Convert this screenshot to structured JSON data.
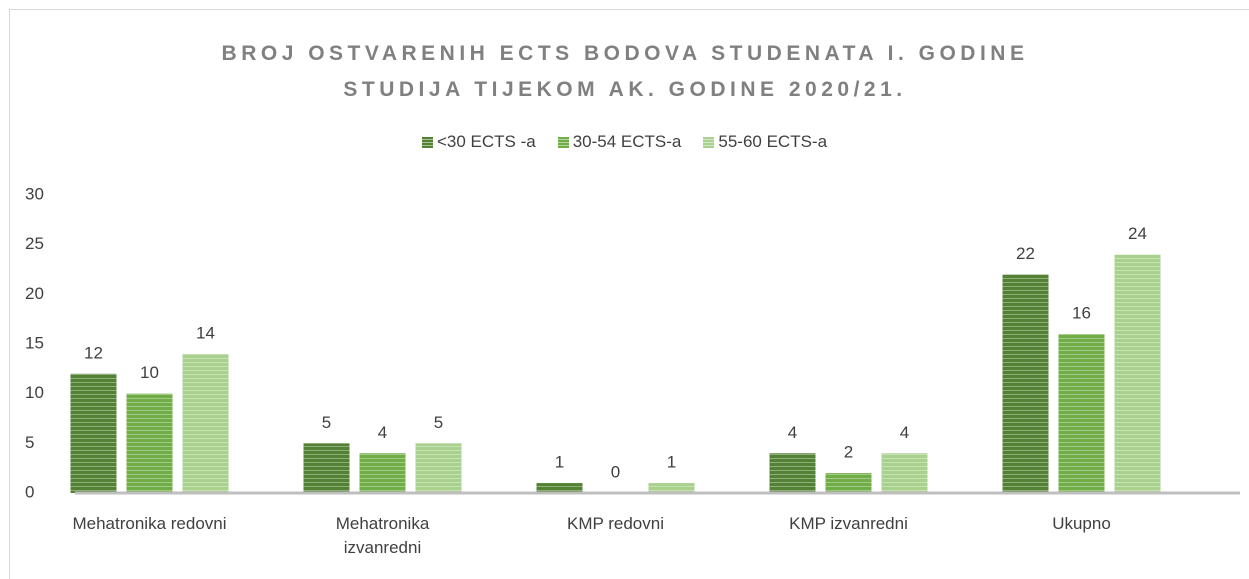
{
  "chart_data": {
    "type": "bar",
    "title": "BROJ OSTVARENIH ECTS BODOVA STUDENATA I. GODINE STUDIJA TIJEKOM AK. GODINE 2020/21.",
    "categories": [
      "Mehatronika redovni",
      "Mehatronika izvanredni",
      "KMP redovni",
      "KMP izvanredni",
      "Ukupno"
    ],
    "series": [
      {
        "name": "<30 ECTS -a",
        "color": "#548235",
        "values": [
          12,
          5,
          1,
          4,
          22
        ]
      },
      {
        "name": "30-54 ECTS-a",
        "color": "#70ad47",
        "values": [
          10,
          4,
          0,
          2,
          16
        ]
      },
      {
        "name": "55-60 ECTS-a",
        "color": "#a9d18e",
        "values": [
          14,
          5,
          1,
          4,
          24
        ]
      }
    ],
    "ylim": [
      0,
      30
    ],
    "yticks": [
      0,
      5,
      10,
      15,
      20,
      25,
      30
    ],
    "grid": false,
    "legend": "top"
  }
}
